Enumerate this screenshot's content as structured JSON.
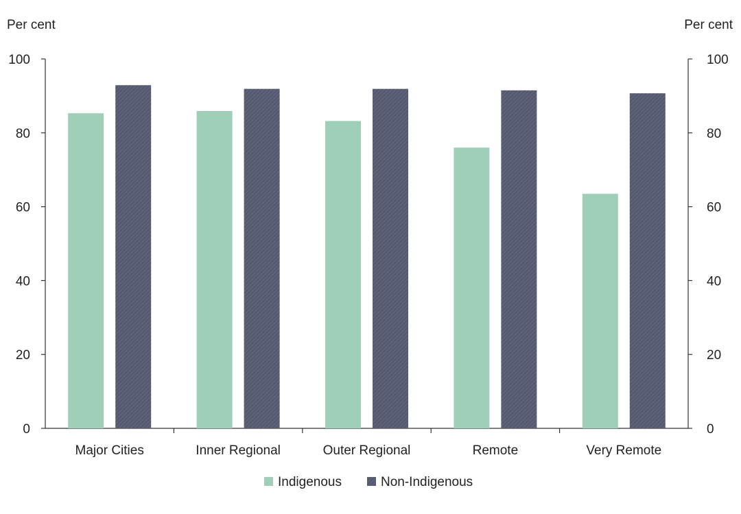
{
  "chart_data": {
    "type": "bar",
    "categories": [
      "Major Cities",
      "Inner Regional",
      "Outer Regional",
      "Remote",
      "Very Remote"
    ],
    "series": [
      {
        "name": "Indigenous",
        "values": [
          85.3,
          85.9,
          83.2,
          76.0,
          63.5
        ],
        "color": "#9fcfb9"
      },
      {
        "name": "Non-Indigenous",
        "values": [
          92.9,
          91.9,
          91.9,
          91.5,
          90.7
        ],
        "color": "#555a70"
      }
    ],
    "y_unit_left": "Per cent",
    "y_unit_right": "Per cent",
    "ylim": [
      0,
      100
    ],
    "yticks": [
      0,
      20,
      40,
      60,
      80,
      100
    ],
    "grid": false,
    "legend_position": "bottom"
  }
}
